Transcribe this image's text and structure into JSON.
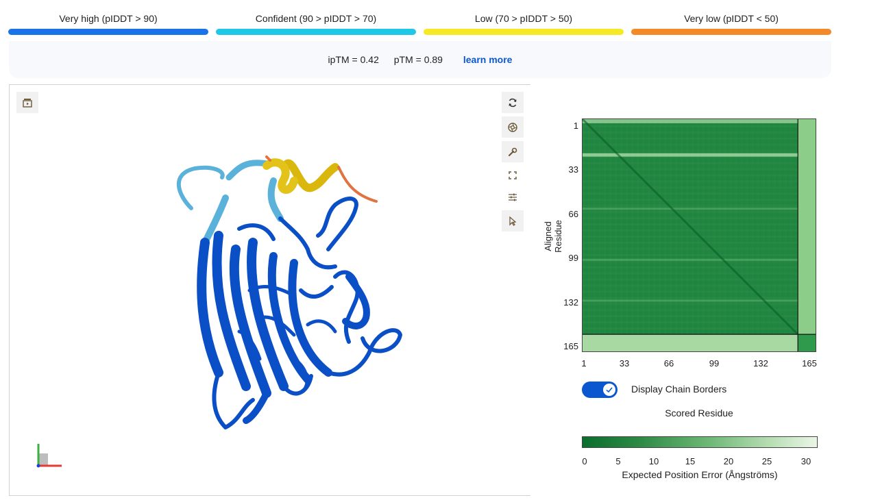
{
  "legend": {
    "items": [
      {
        "label": "Very high (pIDDT > 90)",
        "color": "#1a73e8"
      },
      {
        "label": "Confident (90 > pIDDT > 70)",
        "color": "#1fc8e6"
      },
      {
        "label": "Low (70 > pIDDT > 50)",
        "color": "#f5e928"
      },
      {
        "label": "Very low (pIDDT < 50)",
        "color": "#f28a2a"
      }
    ]
  },
  "metrics": {
    "iptm": "ipTM = 0.42",
    "ptm": "pTM = 0.89",
    "learn_more": "learn more"
  },
  "viewer": {
    "left_button_icon": "playback-panel-icon",
    "toolbar_icons": [
      "rotate-icon",
      "camera-icon",
      "wrench-icon",
      "fullscreen-icon",
      "sliders-icon",
      "cursor-icon"
    ]
  },
  "pae": {
    "y_axis_label": "Aligned Residue",
    "x_axis_label": "Scored Residue",
    "y_ticks": [
      "1",
      "33",
      "66",
      "99",
      "132",
      "165"
    ],
    "x_ticks": [
      "1",
      "33",
      "66",
      "99",
      "132",
      "165"
    ],
    "toggle_label": "Display Chain Borders",
    "toggle_on": true,
    "colorbar_ticks": [
      "0",
      "5",
      "10",
      "15",
      "20",
      "25",
      "30"
    ],
    "colorbar_label": "Expected Position Error (Ångströms)",
    "colors": {
      "low_error": "#0b6e2d",
      "high_error": "#eaf6e6"
    }
  }
}
